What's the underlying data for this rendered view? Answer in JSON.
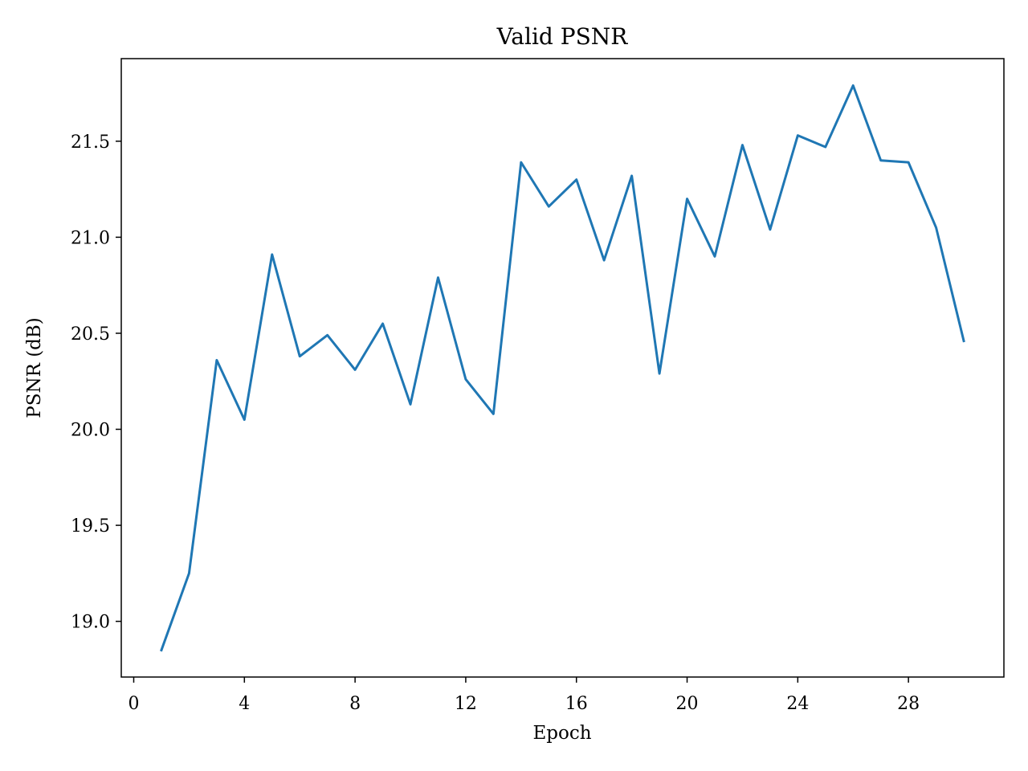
{
  "chart_data": {
    "type": "line",
    "title": "Valid PSNR",
    "xlabel": "Epoch",
    "ylabel": "PSNR (dB)",
    "xlim": [
      -0.45,
      31.45
    ],
    "ylim": [
      18.71,
      21.93
    ],
    "xticks": [
      0,
      4,
      8,
      12,
      16,
      20,
      24,
      28
    ],
    "yticks": [
      19.0,
      19.5,
      20.0,
      20.5,
      21.0,
      21.5
    ],
    "ytick_labels": [
      "19.0",
      "19.5",
      "20.0",
      "20.5",
      "21.0",
      "21.5"
    ],
    "grid": false,
    "series": [
      {
        "color": "#1f77b4",
        "x": [
          1,
          2,
          3,
          4,
          5,
          6,
          7,
          8,
          9,
          10,
          11,
          12,
          13,
          14,
          15,
          16,
          17,
          18,
          19,
          20,
          21,
          22,
          23,
          24,
          25,
          26,
          27,
          28,
          29,
          30
        ],
        "y": [
          18.85,
          19.25,
          20.36,
          20.05,
          20.91,
          20.38,
          20.49,
          20.31,
          20.55,
          20.13,
          20.79,
          20.26,
          20.08,
          21.39,
          21.16,
          21.3,
          20.88,
          21.32,
          20.29,
          21.2,
          20.9,
          21.48,
          21.04,
          21.53,
          21.47,
          21.79,
          21.4,
          21.39,
          21.05,
          20.46
        ]
      }
    ]
  }
}
